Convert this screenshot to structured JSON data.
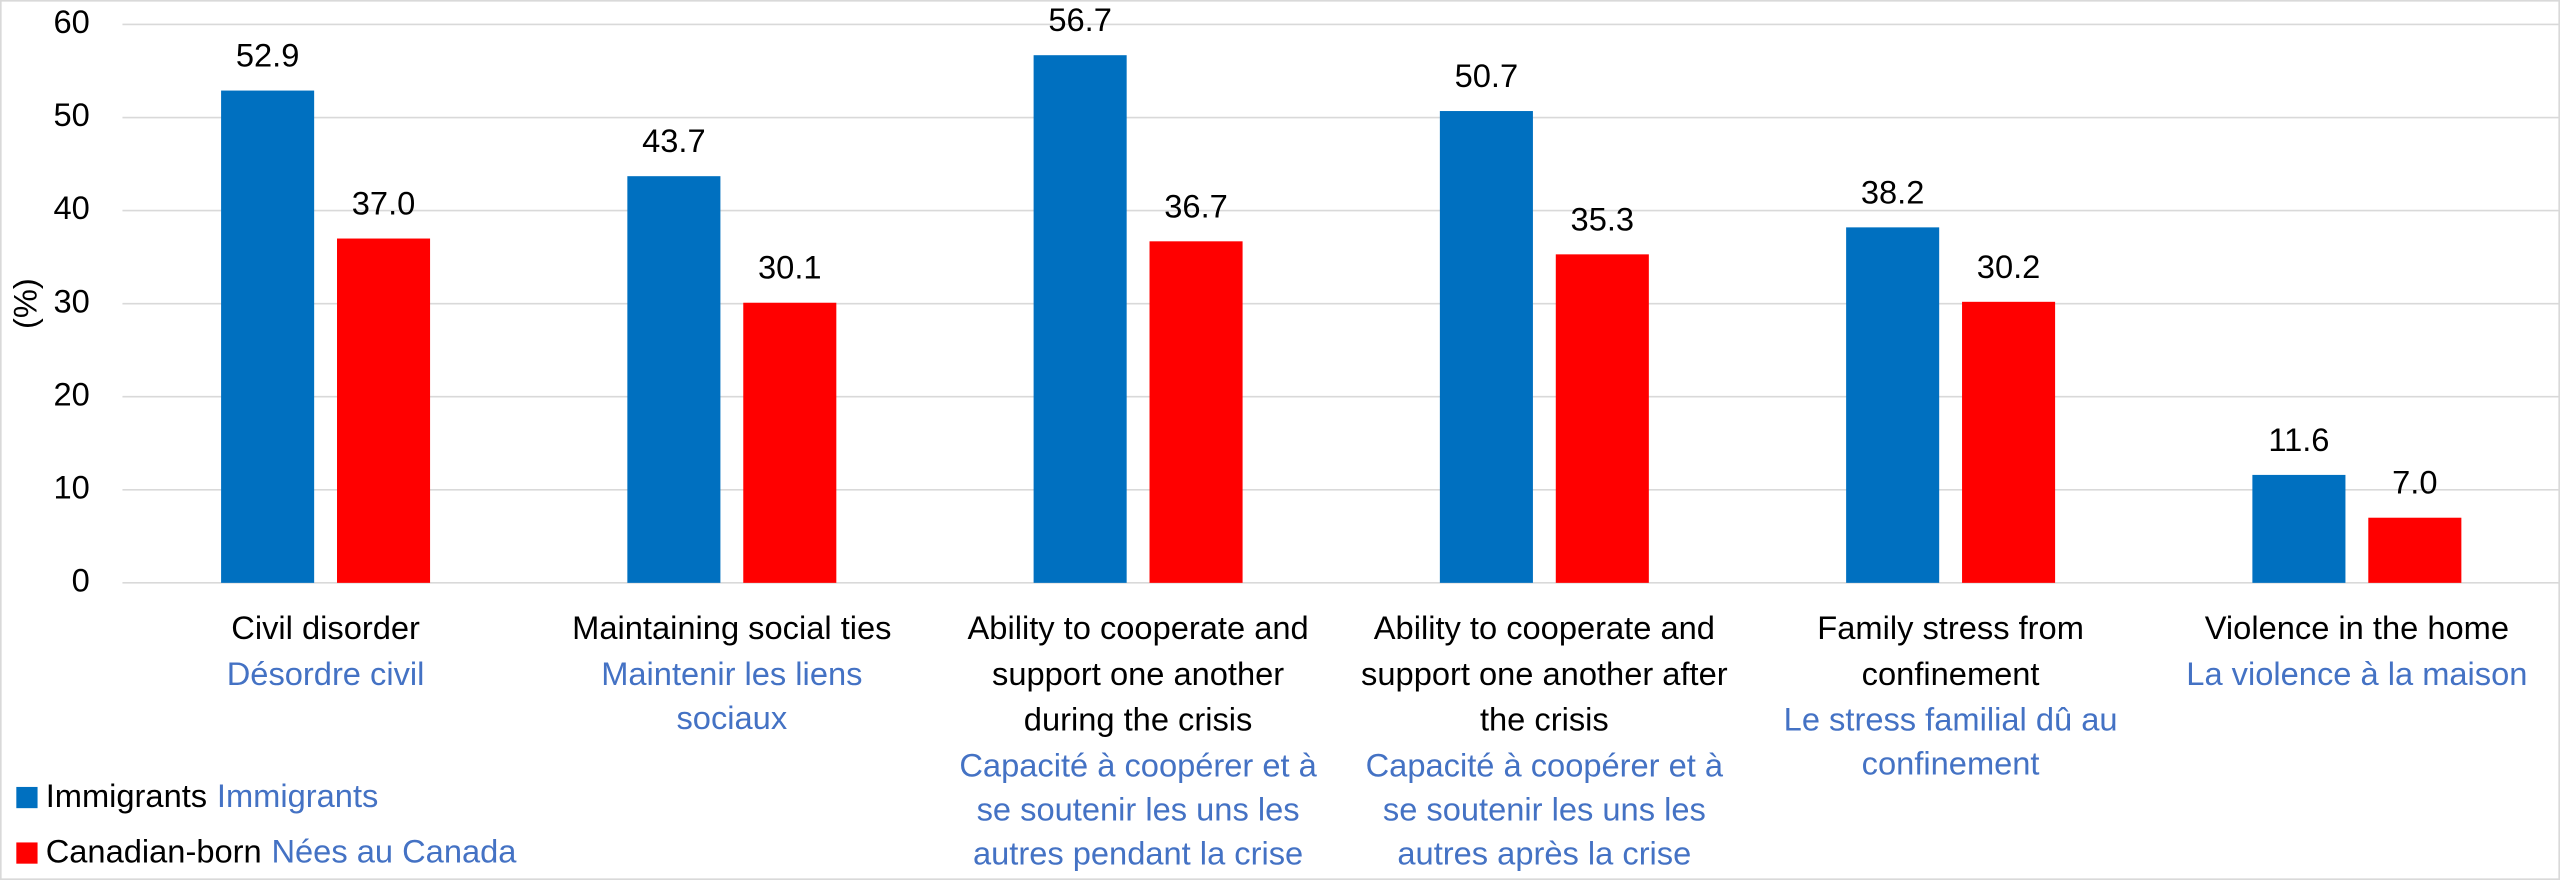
{
  "chart_data": {
    "type": "bar",
    "y_label": "(%)",
    "categories": [
      "Civil disorder",
      "Maintaining social ties",
      "Ability to cooperate and support one another during the crisis",
      "Ability to cooperate and support one another after the crisis",
      "Family stress from confinement",
      "Violence in the home"
    ],
    "categories_fr": [
      "Désordre civil",
      "Maintenir les liens sociaux",
      "Capacité à coopérer et à se soutenir les uns les autres pendant la crise",
      "Capacité à coopérer et à se soutenir les uns les autres après la crise",
      "Le stress familial dû au confinement",
      "La violence à la maison"
    ],
    "series": [
      {
        "name": "Immigrants",
        "name_fr": "Immigrants",
        "color": "#0070c0",
        "values": [
          52.9,
          43.7,
          56.7,
          50.7,
          38.2,
          11.6
        ],
        "value_labels": [
          "52.9",
          "43.7",
          "56.7",
          "50.7",
          "38.2",
          "11.6"
        ]
      },
      {
        "name": "Canadian-born",
        "name_fr": "Nées au Canada",
        "color": "#ff0000",
        "values": [
          37.0,
          30.1,
          36.7,
          35.3,
          30.2,
          7.0
        ],
        "value_labels": [
          "37.0",
          "30.1",
          "36.7",
          "35.3",
          "30.2",
          "7.0"
        ]
      }
    ],
    "ylim": [
      0,
      60
    ],
    "yticks": [
      0,
      10,
      20,
      30,
      40,
      50,
      60
    ],
    "grid": true,
    "legend": "bottom-left"
  }
}
